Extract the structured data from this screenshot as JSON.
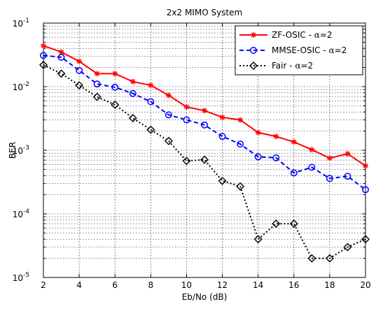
{
  "chart_data": {
    "type": "line",
    "title": "2x2 MIMO System",
    "xlabel": "Eb/No (dB)",
    "ylabel": "BER",
    "yscale": "log",
    "xlim": [
      2,
      20
    ],
    "ylim": [
      1e-05,
      0.1
    ],
    "xticks": [
      2,
      4,
      6,
      8,
      10,
      12,
      14,
      16,
      18,
      20
    ],
    "xtick_labels": [
      "2",
      "4",
      "6",
      "8",
      "10",
      "12",
      "14",
      "16",
      "18",
      "20"
    ],
    "ytick_labels": [
      {
        "base": "10",
        "exp": "-1"
      },
      {
        "base": "10",
        "exp": "-2"
      },
      {
        "base": "10",
        "exp": "-3"
      },
      {
        "base": "10",
        "exp": "-4"
      },
      {
        "base": "10",
        "exp": "-5"
      }
    ],
    "grid": true,
    "legend_position": "top-right",
    "x": [
      2,
      3,
      4,
      5,
      6,
      7,
      8,
      9,
      10,
      11,
      12,
      13,
      14,
      15,
      16,
      17,
      18,
      19,
      20
    ],
    "series": [
      {
        "name": "ZF-OSIC - α=2",
        "name_parts": {
          "prefix": "ZF-OSIC - ",
          "greek": "α",
          "suffix": "=2"
        },
        "color": "#ff0000",
        "line_style": "solid",
        "marker": "star",
        "values": [
          0.044,
          0.035,
          0.025,
          0.016,
          0.016,
          0.012,
          0.0105,
          0.0073,
          0.0048,
          0.0042,
          0.0033,
          0.003,
          0.0019,
          0.00165,
          0.00135,
          0.00102,
          0.00075,
          0.00088,
          0.00057
        ]
      },
      {
        "name": "MMSE-OSIC - α=2",
        "name_parts": {
          "prefix": "MMSE-OSIC - ",
          "greek": "α",
          "suffix": "=2"
        },
        "color": "#0000ff",
        "line_style": "dashed",
        "marker": "circle",
        "values": [
          0.031,
          0.029,
          0.018,
          0.011,
          0.0098,
          0.0078,
          0.0058,
          0.0036,
          0.003,
          0.0025,
          0.00165,
          0.00125,
          0.00079,
          0.00076,
          0.00044,
          0.00054,
          0.00036,
          0.00039,
          0.00024
        ]
      },
      {
        "name": "Fair - α=2",
        "name_parts": {
          "prefix": "Fair - ",
          "greek": "α",
          "suffix": "=2"
        },
        "color": "#000000",
        "line_style": "dotted",
        "marker": "diamond",
        "values": [
          0.022,
          0.016,
          0.0105,
          0.0069,
          0.0052,
          0.0032,
          0.0021,
          0.0014,
          0.00068,
          0.00071,
          0.00033,
          0.00027,
          4e-05,
          7e-05,
          7e-05,
          2e-05,
          2e-05,
          3e-05,
          4e-05
        ]
      }
    ]
  }
}
